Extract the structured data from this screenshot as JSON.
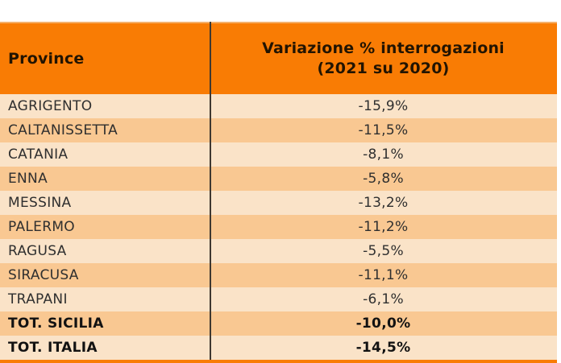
{
  "table": {
    "columns": [
      {
        "label": "Province"
      },
      {
        "label": "Variazione % interrogazioni",
        "sublabel": "(2021 su 2020)"
      }
    ],
    "rows": [
      {
        "province": "AGRIGENTO",
        "value": "-15,9%"
      },
      {
        "province": "CALTANISSETTA",
        "value": "-11,5%"
      },
      {
        "province": "CATANIA",
        "value": "-8,1%"
      },
      {
        "province": "ENNA",
        "value": "-5,8%"
      },
      {
        "province": "MESSINA",
        "value": "-13,2%"
      },
      {
        "province": "PALERMO",
        "value": "-11,2%"
      },
      {
        "province": "RAGUSA",
        "value": "-5,5%"
      },
      {
        "province": "SIRACUSA",
        "value": "-11,1%"
      },
      {
        "province": "TRAPANI",
        "value": "-6,1%"
      },
      {
        "province": "TOT. SICILIA",
        "value": "-10,0%"
      },
      {
        "province": "TOT. ITALIA",
        "value": "-14,5%"
      }
    ]
  },
  "colors": {
    "header_bg": "#F97C04",
    "row_light": "#FAE3C8",
    "row_dark": "#F9C892",
    "top_border": "#F5B06A",
    "bottom_strip": "#F97C04",
    "column_divider": "#3E3831",
    "header_text": "#221402",
    "body_text": "#2F2F2F",
    "total_text": "#121212"
  },
  "chart_data": {
    "type": "table",
    "title": "",
    "columns": [
      "Province",
      "Variazione % interrogazioni (2021 su 2020)"
    ],
    "rows": [
      [
        "AGRIGENTO",
        "-15,9%"
      ],
      [
        "CALTANISSETTA",
        "-11,5%"
      ],
      [
        "CATANIA",
        "-8,1%"
      ],
      [
        "ENNA",
        "-5,8%"
      ],
      [
        "MESSINA",
        "-13,2%"
      ],
      [
        "PALERMO",
        "-11,2%"
      ],
      [
        "RAGUSA",
        "-5,5%"
      ],
      [
        "SIRACUSA",
        "-11,1%"
      ],
      [
        "TRAPANI",
        "-6,1%"
      ],
      [
        "TOT. SICILIA",
        "-10,0%"
      ],
      [
        "TOT. ITALIA",
        "-14,5%"
      ]
    ],
    "categories": [
      "AGRIGENTO",
      "CALTANISSETTA",
      "CATANIA",
      "ENNA",
      "MESSINA",
      "PALERMO",
      "RAGUSA",
      "SIRACUSA",
      "TRAPANI",
      "TOT. SICILIA",
      "TOT. ITALIA"
    ],
    "values": [
      -15.9,
      -11.5,
      -8.1,
      -5.8,
      -13.2,
      -11.2,
      -5.5,
      -11.1,
      -6.1,
      -10.0,
      -14.5
    ],
    "value_unit": "%",
    "legend": "none",
    "grid": "off"
  }
}
